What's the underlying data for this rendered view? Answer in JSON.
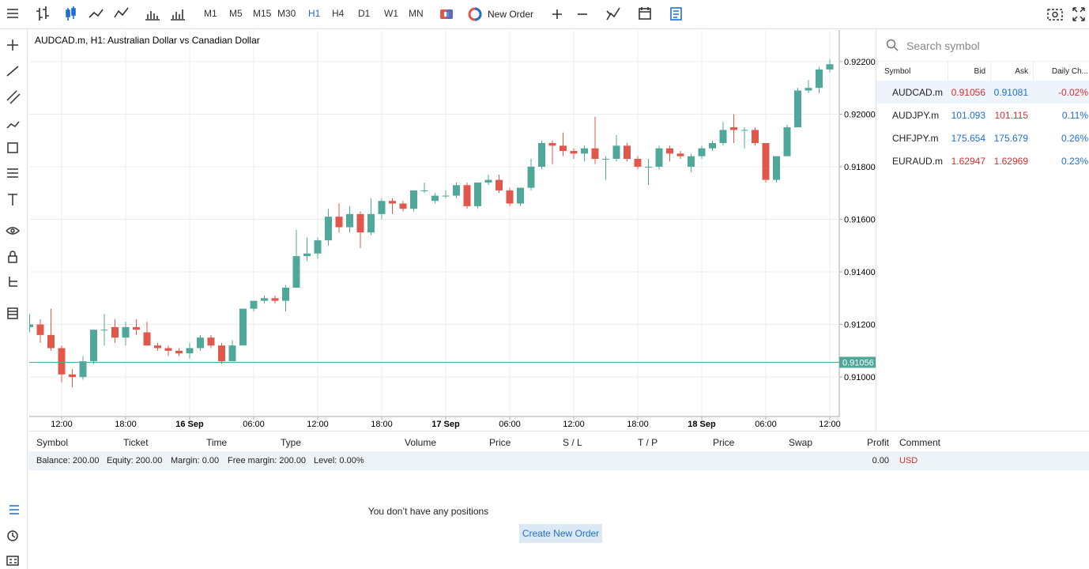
{
  "toolbar": {
    "timeframes": [
      "M1",
      "M5",
      "M15",
      "M30",
      "H1",
      "H4",
      "D1",
      "W1",
      "MN"
    ],
    "active_timeframe": "H1",
    "new_order": "New Order"
  },
  "chart_data": {
    "type": "candlestick",
    "title": "AUDCAD.m, H1: Australian Dollar vs Canadian Dollar",
    "categories": [
      null,
      null,
      null,
      "12:00",
      null,
      null,
      null,
      null,
      null,
      "18:00",
      null,
      null,
      null,
      null,
      null,
      "16 Sep",
      null,
      null,
      null,
      null,
      null,
      "06:00",
      null,
      null,
      null,
      null,
      null,
      "12:00",
      null,
      null,
      null,
      null,
      null,
      "18:00",
      null,
      null,
      null,
      null,
      null,
      "17 Sep",
      null,
      null,
      null,
      null,
      null,
      "06:00",
      null,
      null,
      null,
      null,
      null,
      "12:00",
      null,
      null,
      null,
      null,
      null,
      "18:00",
      null,
      null,
      null,
      null,
      null,
      "18 Sep",
      null,
      null,
      null,
      null,
      null,
      "06:00",
      null,
      null,
      null,
      null,
      null,
      "12:00"
    ],
    "bold_categories": [
      "16 Sep",
      "17 Sep",
      "18 Sep"
    ],
    "open": [
      0.9119,
      0.912,
      0.9116,
      0.9111,
      0.9101,
      0.91,
      0.9106,
      0.9118,
      0.9119,
      0.9115,
      0.9119,
      0.9117,
      0.9112,
      0.9111,
      0.911,
      0.9109,
      0.9111,
      0.9115,
      0.9112,
      0.9106,
      0.9112,
      0.9126,
      0.9129,
      0.913,
      0.9129,
      0.9134,
      0.9146,
      0.9147,
      0.9152,
      0.9161,
      0.9157,
      0.9162,
      0.9155,
      0.9162,
      0.9167,
      0.9166,
      0.9164,
      0.9171,
      0.9167,
      0.9169,
      0.9169,
      0.9173,
      0.9165,
      0.9174,
      0.9175,
      0.9171,
      0.9166,
      0.9172,
      0.918,
      0.9189,
      0.9188,
      0.9186,
      0.9185,
      0.9187,
      0.9183,
      0.9183,
      0.9188,
      0.9183,
      0.918,
      0.918,
      0.9187,
      0.9185,
      0.918,
      0.9184,
      0.9187,
      0.9189,
      0.9195,
      0.9194,
      0.9194,
      0.9189,
      0.9175,
      0.9184,
      0.9195,
      0.9209,
      0.921,
      0.9217
    ],
    "high": [
      0.9124,
      0.9122,
      0.9126,
      0.9112,
      0.9103,
      0.9108,
      0.9118,
      0.9124,
      0.9122,
      0.9121,
      0.9122,
      0.9121,
      0.9113,
      0.9112,
      0.9111,
      0.9113,
      0.9116,
      0.9116,
      0.9113,
      0.9114,
      0.9126,
      0.9129,
      0.9131,
      0.9131,
      0.9135,
      0.9156,
      0.9153,
      0.9153,
      0.9164,
      0.9166,
      0.9165,
      0.9163,
      0.9168,
      0.9168,
      0.9168,
      0.9167,
      0.9171,
      0.9174,
      0.917,
      0.9171,
      0.9174,
      0.9174,
      0.9174,
      0.9177,
      0.9177,
      0.9172,
      0.9172,
      0.9183,
      0.919,
      0.919,
      0.9193,
      0.9187,
      0.9188,
      0.9199,
      0.9184,
      0.9192,
      0.9189,
      0.9184,
      0.9183,
      0.9188,
      0.9188,
      0.9186,
      0.9185,
      0.9188,
      0.919,
      0.9197,
      0.92,
      0.9195,
      0.9195,
      0.9189,
      0.9184,
      0.9196,
      0.921,
      0.9213,
      0.9218,
      0.9221
    ],
    "low": [
      0.9117,
      0.9113,
      0.911,
      0.9098,
      0.9096,
      0.9099,
      0.9105,
      0.9112,
      0.9113,
      0.9112,
      0.9116,
      0.9112,
      0.911,
      0.9108,
      0.9108,
      0.9107,
      0.911,
      0.9111,
      0.9105,
      0.9106,
      0.9112,
      0.9125,
      0.9128,
      0.9128,
      0.9125,
      0.9134,
      0.9144,
      0.9145,
      0.915,
      0.9155,
      0.9155,
      0.9149,
      0.9154,
      0.916,
      0.9162,
      0.9163,
      0.9163,
      0.917,
      0.9166,
      0.9168,
      0.9168,
      0.9164,
      0.9164,
      0.9173,
      0.917,
      0.9165,
      0.9165,
      0.9171,
      0.9179,
      0.9181,
      0.9184,
      0.9183,
      0.9182,
      0.9181,
      0.9175,
      0.9182,
      0.9182,
      0.9179,
      0.9173,
      0.9179,
      0.9182,
      0.9183,
      0.9178,
      0.9183,
      0.9186,
      0.9188,
      0.9189,
      0.9187,
      0.9188,
      0.9174,
      0.9174,
      0.9184,
      0.9195,
      0.9208,
      0.9208,
      0.9216
    ],
    "close": [
      0.912,
      0.9116,
      0.9111,
      0.9101,
      0.91,
      0.9106,
      0.9118,
      0.9118,
      0.9115,
      0.9119,
      0.9118,
      0.9112,
      0.9111,
      0.911,
      0.9109,
      0.9111,
      0.9115,
      0.9112,
      0.9106,
      0.9112,
      0.9126,
      0.9129,
      0.913,
      0.9129,
      0.9134,
      0.9146,
      0.9147,
      0.9152,
      0.9161,
      0.9157,
      0.9162,
      0.9155,
      0.9162,
      0.9167,
      0.9166,
      0.9164,
      0.9171,
      0.9171,
      0.9169,
      0.9169,
      0.9173,
      0.9165,
      0.9174,
      0.9175,
      0.9171,
      0.9166,
      0.9172,
      0.918,
      0.9189,
      0.9188,
      0.9186,
      0.9185,
      0.9187,
      0.9183,
      0.9183,
      0.9188,
      0.9183,
      0.918,
      0.918,
      0.9187,
      0.9185,
      0.9184,
      0.9184,
      0.9187,
      0.9189,
      0.9194,
      0.9194,
      0.9194,
      0.9189,
      0.9175,
      0.9184,
      0.9195,
      0.9209,
      0.921,
      0.9217,
      0.9219
    ],
    "up_color": "#4fa89a",
    "down_color": "#e2574c",
    "ylim": [
      0.9085,
      0.9232
    ],
    "yticks": [
      {
        "value": 0.922,
        "label": "0.92200"
      },
      {
        "value": 0.92,
        "label": "0.92000"
      },
      {
        "value": 0.918,
        "label": "0.91800"
      },
      {
        "value": 0.916,
        "label": "0.91600"
      },
      {
        "value": 0.914,
        "label": "0.91400"
      },
      {
        "value": 0.912,
        "label": "0.91200"
      },
      {
        "value": 0.91,
        "label": "0.91000"
      }
    ],
    "price_line": {
      "value": 0.91056,
      "label": "0.91056",
      "color": "#4fa89a"
    },
    "grid": true
  },
  "watchlist": {
    "search_placeholder": "Search symbol",
    "columns": [
      "Symbol",
      "Bid",
      "Ask",
      "Daily Ch..."
    ],
    "rows": [
      {
        "symbol": "AUDCAD.m",
        "bid": "0.91056",
        "ask": "0.91081",
        "change": "-0.02%",
        "direction": "down",
        "bid_color": "#d32f2f",
        "ask_color": "#1f6fd1",
        "change_color": "#d32f2f"
      },
      {
        "symbol": "AUDJPY.m",
        "bid": "101.093",
        "ask": "101.115",
        "change": "0.11%",
        "direction": "up",
        "bid_color": "#1f6fd1",
        "ask_color": "#d32f2f",
        "change_color": "#1f6fd1"
      },
      {
        "symbol": "CHFJPY.m",
        "bid": "175.654",
        "ask": "175.679",
        "change": "0.26%",
        "direction": "up",
        "bid_color": "#1f6fd1",
        "ask_color": "#1f6fd1",
        "change_color": "#1f6fd1"
      },
      {
        "symbol": "EURAUD.m",
        "bid": "1.62947",
        "ask": "1.62969",
        "change": "0.23%",
        "direction": "down",
        "bid_color": "#d32f2f",
        "ask_color": "#d32f2f",
        "change_color": "#1f6fd1"
      }
    ]
  },
  "positions": {
    "columns": [
      "Symbol",
      "Ticket",
      "Time",
      "Type",
      "Volume",
      "Price",
      "S / L",
      "T / P",
      "Price",
      "Swap",
      "Profit",
      "Comment"
    ],
    "summary": [
      "Balance: 200.00",
      "Equity: 200.00",
      "Margin: 0.00",
      "Free margin: 200.00",
      "Level: 0.00%"
    ],
    "profit": "0.00",
    "currency": "USD",
    "empty_message": "You don’t have any positions",
    "button": "Create New Order"
  }
}
